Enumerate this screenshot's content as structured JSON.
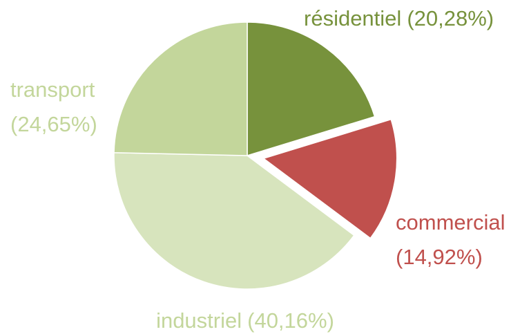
{
  "chart_data": {
    "type": "pie",
    "categories": [
      "résidentiel",
      "commercial",
      "industriel",
      "transport"
    ],
    "values": [
      20.28,
      14.92,
      40.16,
      24.65
    ],
    "value_labels": [
      "(20,28%)",
      "(14,92%)",
      "(40,16%)",
      "(24,65%)"
    ],
    "colors": [
      "#77923c",
      "#c0504d",
      "#d7e4bd",
      "#c3d69b"
    ],
    "label_colors": [
      "#77923c",
      "#c0504d",
      "#c3d69b",
      "#c3d69b"
    ],
    "exploded": [
      false,
      true,
      false,
      false
    ]
  }
}
